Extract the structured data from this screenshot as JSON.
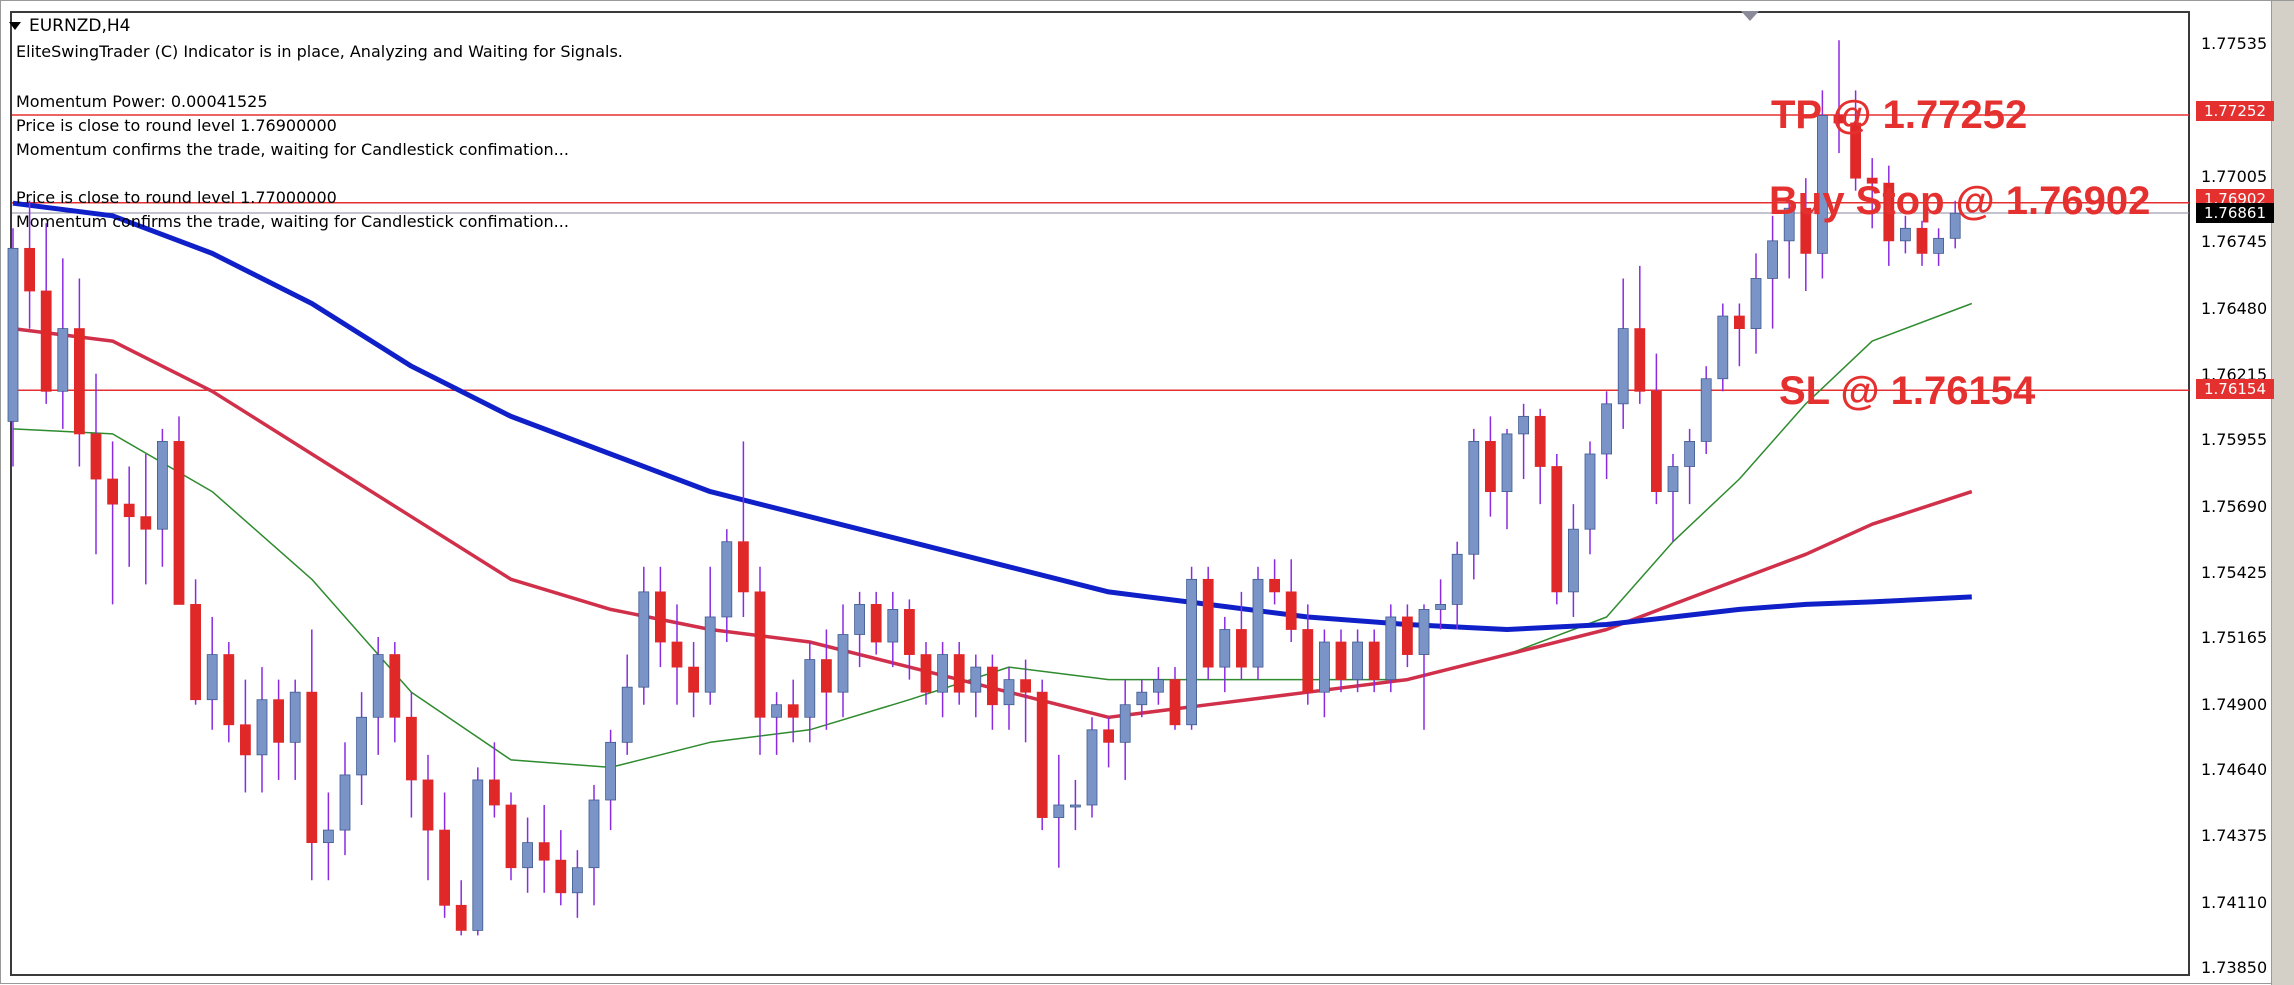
{
  "chart_header": {
    "symbol": "EURNZD,H4"
  },
  "indicator_messages": [
    "EliteSwingTrader (C) Indicator is in place, Analyzing and Waiting for Signals.",
    "",
    "Momentum Power: 0.00041525",
    "Price is close to round level 1.76900000",
    "Momentum confirms the trade, waiting for Candlestick confimation...",
    "",
    "Price is close to round level 1.77000000",
    "Momentum confirms the trade, waiting for Candlestick confimation..."
  ],
  "trade_levels": {
    "tp_label": "TP @ 1.77252",
    "buy_label": "Buy Stop @ 1.76902",
    "sl_label": "SL @ 1.76154",
    "tp_tag": "1.77252",
    "buy_tag": "1.76902",
    "current_tag": "1.76861",
    "sl_tag": "1.76154"
  },
  "colors": {
    "bull_candle": "#7a94c8",
    "bear_candle": "#e02828",
    "wick": "#8a2be2",
    "ma_fast": "#2e8b2e",
    "ma_mid": "#d0304a",
    "ma_slow": "#1020c8",
    "level_line": "#e53030",
    "current_tag_bg": "#000000"
  },
  "chart_data": {
    "type": "candlestick",
    "title": "EURNZD,H4",
    "ylim": [
      1.7385,
      1.778
    ],
    "price_axis_ticks": [
      "1.77535",
      "1.77005",
      "1.76745",
      "1.76480",
      "1.76215",
      "1.75955",
      "1.75690",
      "1.75425",
      "1.75165",
      "1.74900",
      "1.74640",
      "1.74375",
      "1.74110",
      "1.73850"
    ],
    "horizontal_levels": [
      {
        "name": "TP",
        "value": 1.77252
      },
      {
        "name": "Buy Stop",
        "value": 1.76902
      },
      {
        "name": "SL",
        "value": 1.76154
      }
    ],
    "current_price": 1.76861,
    "candles": [
      [
        1.7603,
        1.768,
        1.7585,
        1.7672
      ],
      [
        1.7672,
        1.7691,
        1.764,
        1.7655
      ],
      [
        1.7655,
        1.7682,
        1.761,
        1.7615
      ],
      [
        1.7615,
        1.7668,
        1.76,
        1.764
      ],
      [
        1.764,
        1.766,
        1.7585,
        1.7598
      ],
      [
        1.7598,
        1.7622,
        1.755,
        1.758
      ],
      [
        1.758,
        1.7595,
        1.753,
        1.757
      ],
      [
        1.757,
        1.7585,
        1.7545,
        1.7565
      ],
      [
        1.7565,
        1.759,
        1.7538,
        1.756
      ],
      [
        1.756,
        1.76,
        1.7545,
        1.7595
      ],
      [
        1.7595,
        1.7605,
        1.753,
        1.753
      ],
      [
        1.753,
        1.754,
        1.749,
        1.7492
      ],
      [
        1.7492,
        1.7525,
        1.748,
        1.751
      ],
      [
        1.751,
        1.7515,
        1.7475,
        1.7482
      ],
      [
        1.7482,
        1.75,
        1.7455,
        1.747
      ],
      [
        1.747,
        1.7505,
        1.7455,
        1.7492
      ],
      [
        1.7492,
        1.75,
        1.746,
        1.7475
      ],
      [
        1.7475,
        1.75,
        1.746,
        1.7495
      ],
      [
        1.7495,
        1.752,
        1.742,
        1.7435
      ],
      [
        1.7435,
        1.7455,
        1.742,
        1.744
      ],
      [
        1.744,
        1.7475,
        1.743,
        1.7462
      ],
      [
        1.7462,
        1.7495,
        1.745,
        1.7485
      ],
      [
        1.7485,
        1.7517,
        1.747,
        1.751
      ],
      [
        1.751,
        1.7515,
        1.7475,
        1.7485
      ],
      [
        1.7485,
        1.7495,
        1.7445,
        1.746
      ],
      [
        1.746,
        1.747,
        1.742,
        1.744
      ],
      [
        1.744,
        1.7455,
        1.7405,
        1.741
      ],
      [
        1.741,
        1.742,
        1.7398,
        1.74
      ],
      [
        1.74,
        1.7465,
        1.7398,
        1.746
      ],
      [
        1.746,
        1.7475,
        1.7445,
        1.745
      ],
      [
        1.745,
        1.7455,
        1.742,
        1.7425
      ],
      [
        1.7425,
        1.7445,
        1.7415,
        1.7435
      ],
      [
        1.7435,
        1.745,
        1.7415,
        1.7428
      ],
      [
        1.7428,
        1.744,
        1.741,
        1.7415
      ],
      [
        1.7415,
        1.7432,
        1.7405,
        1.7425
      ],
      [
        1.7425,
        1.7458,
        1.741,
        1.7452
      ],
      [
        1.7452,
        1.748,
        1.744,
        1.7475
      ],
      [
        1.7475,
        1.751,
        1.747,
        1.7497
      ],
      [
        1.7497,
        1.7545,
        1.749,
        1.7535
      ],
      [
        1.7535,
        1.7545,
        1.7505,
        1.7515
      ],
      [
        1.7515,
        1.753,
        1.749,
        1.7505
      ],
      [
        1.7505,
        1.7515,
        1.7485,
        1.7495
      ],
      [
        1.7495,
        1.7545,
        1.749,
        1.7525
      ],
      [
        1.7525,
        1.756,
        1.7515,
        1.7555
      ],
      [
        1.7555,
        1.7595,
        1.7525,
        1.7535
      ],
      [
        1.7535,
        1.7545,
        1.747,
        1.7485
      ],
      [
        1.7485,
        1.7495,
        1.747,
        1.749
      ],
      [
        1.749,
        1.75,
        1.7475,
        1.7485
      ],
      [
        1.7485,
        1.7515,
        1.7475,
        1.7508
      ],
      [
        1.7508,
        1.752,
        1.748,
        1.7495
      ],
      [
        1.7495,
        1.753,
        1.7485,
        1.7518
      ],
      [
        1.7518,
        1.7535,
        1.7505,
        1.753
      ],
      [
        1.753,
        1.7535,
        1.751,
        1.7515
      ],
      [
        1.7515,
        1.7535,
        1.7505,
        1.7528
      ],
      [
        1.7528,
        1.7532,
        1.75,
        1.751
      ],
      [
        1.751,
        1.7515,
        1.749,
        1.7495
      ],
      [
        1.7495,
        1.7515,
        1.7485,
        1.751
      ],
      [
        1.751,
        1.7515,
        1.749,
        1.7495
      ],
      [
        1.7495,
        1.751,
        1.7485,
        1.7505
      ],
      [
        1.7505,
        1.751,
        1.748,
        1.749
      ],
      [
        1.749,
        1.7505,
        1.748,
        1.75
      ],
      [
        1.75,
        1.7508,
        1.7475,
        1.7495
      ],
      [
        1.7495,
        1.75,
        1.744,
        1.7445
      ],
      [
        1.7445,
        1.747,
        1.7425,
        1.745
      ],
      [
        1.745,
        1.746,
        1.744,
        1.745
      ],
      [
        1.745,
        1.7485,
        1.7445,
        1.748
      ],
      [
        1.748,
        1.7485,
        1.7465,
        1.7475
      ],
      [
        1.7475,
        1.75,
        1.746,
        1.749
      ],
      [
        1.749,
        1.75,
        1.7485,
        1.7495
      ],
      [
        1.7495,
        1.7505,
        1.749,
        1.75
      ],
      [
        1.75,
        1.7505,
        1.748,
        1.7482
      ],
      [
        1.7482,
        1.7545,
        1.748,
        1.754
      ],
      [
        1.754,
        1.7545,
        1.75,
        1.7505
      ],
      [
        1.7505,
        1.7525,
        1.7495,
        1.752
      ],
      [
        1.752,
        1.7535,
        1.75,
        1.7505
      ],
      [
        1.7505,
        1.7545,
        1.75,
        1.754
      ],
      [
        1.754,
        1.7548,
        1.753,
        1.7535
      ],
      [
        1.7535,
        1.7548,
        1.7515,
        1.752
      ],
      [
        1.752,
        1.753,
        1.749,
        1.7495
      ],
      [
        1.7495,
        1.752,
        1.7485,
        1.7515
      ],
      [
        1.7515,
        1.752,
        1.7495,
        1.75
      ],
      [
        1.75,
        1.752,
        1.7495,
        1.7515
      ],
      [
        1.7515,
        1.752,
        1.7495,
        1.75
      ],
      [
        1.75,
        1.753,
        1.7495,
        1.7525
      ],
      [
        1.7525,
        1.753,
        1.7505,
        1.751
      ],
      [
        1.751,
        1.753,
        1.748,
        1.7528
      ],
      [
        1.7528,
        1.754,
        1.752,
        1.753
      ],
      [
        1.753,
        1.7555,
        1.752,
        1.755
      ],
      [
        1.755,
        1.76,
        1.754,
        1.7595
      ],
      [
        1.7595,
        1.7605,
        1.7565,
        1.7575
      ],
      [
        1.7575,
        1.76,
        1.756,
        1.7598
      ],
      [
        1.7598,
        1.761,
        1.758,
        1.7605
      ],
      [
        1.7605,
        1.7608,
        1.757,
        1.7585
      ],
      [
        1.7585,
        1.759,
        1.753,
        1.7535
      ],
      [
        1.7535,
        1.757,
        1.7525,
        1.756
      ],
      [
        1.756,
        1.7595,
        1.755,
        1.759
      ],
      [
        1.759,
        1.7615,
        1.758,
        1.761
      ],
      [
        1.761,
        1.766,
        1.76,
        1.764
      ],
      [
        1.764,
        1.7665,
        1.761,
        1.7615
      ],
      [
        1.7615,
        1.763,
        1.757,
        1.7575
      ],
      [
        1.7575,
        1.759,
        1.7555,
        1.7585
      ],
      [
        1.7585,
        1.76,
        1.757,
        1.7595
      ],
      [
        1.7595,
        1.7625,
        1.759,
        1.762
      ],
      [
        1.762,
        1.765,
        1.7615,
        1.7645
      ],
      [
        1.7645,
        1.765,
        1.7625,
        1.764
      ],
      [
        1.764,
        1.767,
        1.763,
        1.766
      ],
      [
        1.766,
        1.7685,
        1.764,
        1.7675
      ],
      [
        1.7675,
        1.769,
        1.766,
        1.7688
      ],
      [
        1.7688,
        1.77,
        1.7655,
        1.767
      ],
      [
        1.767,
        1.7735,
        1.766,
        1.7725
      ],
      [
        1.7725,
        1.7755,
        1.771,
        1.7722
      ],
      [
        1.7722,
        1.7735,
        1.7695,
        1.77
      ],
      [
        1.77,
        1.7708,
        1.768,
        1.7698
      ],
      [
        1.7698,
        1.7705,
        1.7665,
        1.7675
      ],
      [
        1.7675,
        1.7685,
        1.767,
        1.768
      ],
      [
        1.768,
        1.7683,
        1.7665,
        1.767
      ],
      [
        1.767,
        1.768,
        1.7665,
        1.7676
      ],
      [
        1.7676,
        1.7691,
        1.7672,
        1.7686
      ]
    ],
    "ma_fast": [
      [
        0,
        1.76
      ],
      [
        6,
        1.7598
      ],
      [
        12,
        1.7575
      ],
      [
        18,
        1.754
      ],
      [
        24,
        1.7495
      ],
      [
        30,
        1.7468
      ],
      [
        36,
        1.7465
      ],
      [
        42,
        1.7475
      ],
      [
        48,
        1.748
      ],
      [
        54,
        1.7492
      ],
      [
        60,
        1.7505
      ],
      [
        66,
        1.75
      ],
      [
        72,
        1.75
      ],
      [
        78,
        1.75
      ],
      [
        84,
        1.75
      ],
      [
        90,
        1.751
      ],
      [
        96,
        1.7525
      ],
      [
        100,
        1.7555
      ],
      [
        104,
        1.758
      ],
      [
        108,
        1.761
      ],
      [
        112,
        1.7635
      ],
      [
        118,
        1.765
      ]
    ],
    "ma_mid": [
      [
        0,
        1.764
      ],
      [
        6,
        1.7635
      ],
      [
        12,
        1.7615
      ],
      [
        18,
        1.759
      ],
      [
        24,
        1.7565
      ],
      [
        30,
        1.754
      ],
      [
        36,
        1.7528
      ],
      [
        42,
        1.752
      ],
      [
        48,
        1.7515
      ],
      [
        54,
        1.7505
      ],
      [
        60,
        1.7495
      ],
      [
        66,
        1.7485
      ],
      [
        72,
        1.749
      ],
      [
        78,
        1.7495
      ],
      [
        84,
        1.75
      ],
      [
        90,
        1.751
      ],
      [
        96,
        1.752
      ],
      [
        100,
        1.753
      ],
      [
        104,
        1.754
      ],
      [
        108,
        1.755
      ],
      [
        112,
        1.7562
      ],
      [
        118,
        1.7575
      ]
    ],
    "ma_slow": [
      [
        0,
        1.769
      ],
      [
        6,
        1.7685
      ],
      [
        12,
        1.767
      ],
      [
        18,
        1.765
      ],
      [
        24,
        1.7625
      ],
      [
        30,
        1.7605
      ],
      [
        36,
        1.759
      ],
      [
        42,
        1.7575
      ],
      [
        48,
        1.7565
      ],
      [
        54,
        1.7555
      ],
      [
        60,
        1.7545
      ],
      [
        66,
        1.7535
      ],
      [
        72,
        1.753
      ],
      [
        78,
        1.7525
      ],
      [
        84,
        1.7522
      ],
      [
        90,
        1.752
      ],
      [
        96,
        1.7522
      ],
      [
        100,
        1.7525
      ],
      [
        104,
        1.7528
      ],
      [
        108,
        1.753
      ],
      [
        112,
        1.7531
      ],
      [
        118,
        1.7533
      ]
    ]
  }
}
